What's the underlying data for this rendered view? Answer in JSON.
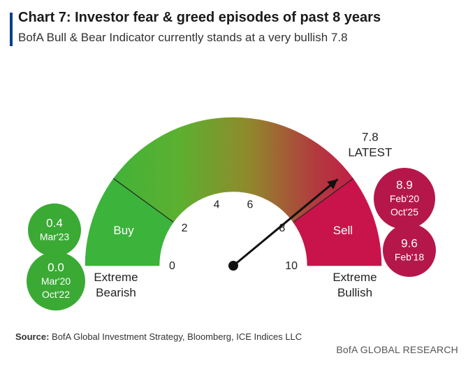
{
  "header": {
    "title": "Chart 7: Investor fear & greed episodes of past 8 years",
    "subtitle": "BofA Bull & Bear Indicator currently stands at a very bullish 7.8"
  },
  "chart_data": {
    "type": "gauge",
    "scale_min": 0,
    "scale_max": 10,
    "ticks": [
      0,
      2,
      4,
      6,
      8,
      10
    ],
    "tick_labels": [
      "0",
      "2",
      "4",
      "6",
      "8",
      "10"
    ],
    "zones": [
      {
        "label": "Buy",
        "from": 0,
        "to": 2,
        "color": "#3cb33b"
      },
      {
        "label": "",
        "from": 2,
        "to": 8,
        "color": "gradient"
      },
      {
        "label": "Sell",
        "from": 8,
        "to": 10,
        "color": "#c8144a"
      }
    ],
    "needle_value": 7.8,
    "needle_labels": [
      "7.8",
      "LATEST"
    ],
    "ends": {
      "left": [
        "Extreme",
        "Bearish"
      ],
      "right": [
        "Extreme",
        "Bullish"
      ]
    },
    "episodes_bearish": [
      {
        "value": "0.4",
        "dates": [
          "Mar'23"
        ]
      },
      {
        "value": "0.0",
        "dates": [
          "Mar'20",
          "Oct'22"
        ]
      }
    ],
    "episodes_bullish": [
      {
        "value": "8.9",
        "dates": [
          "Feb'20",
          "Oct'25"
        ]
      },
      {
        "value": "9.6",
        "dates": [
          "Feb'18"
        ]
      }
    ],
    "colors": {
      "green": "#3cb33b",
      "crimson": "#c8144a",
      "episode_green": "#3aaa35",
      "episode_red": "#b5174a"
    }
  },
  "footer": {
    "source_label": "Source:",
    "source_text": " BofA Global Investment Strategy, Bloomberg, ICE Indices LLC",
    "brand": "BofA GLOBAL RESEARCH"
  }
}
